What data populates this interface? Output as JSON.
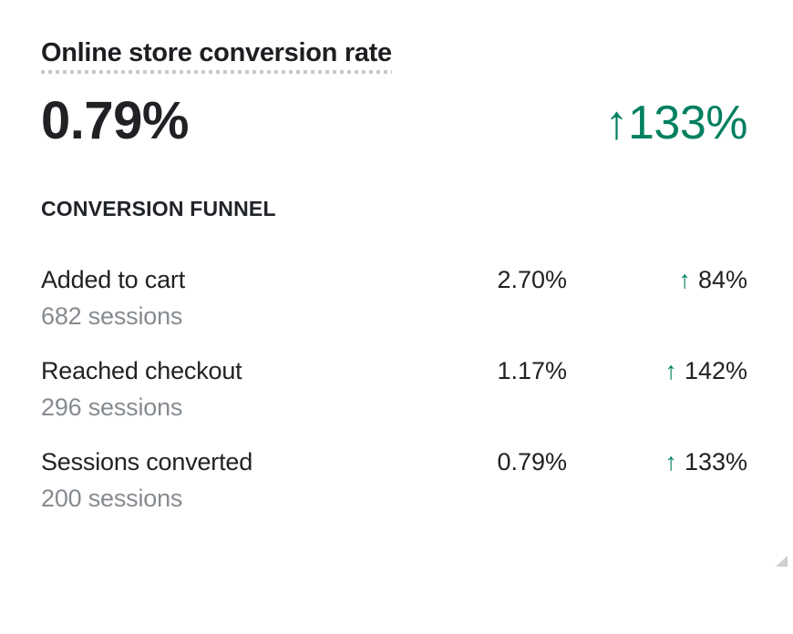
{
  "card": {
    "title": "Online store conversion rate",
    "kpi": {
      "value": "0.79%",
      "change_arrow": "↑",
      "change_value": "133%"
    },
    "section_heading": "CONVERSION FUNNEL",
    "funnel": {
      "rows": [
        {
          "label": "Added to cart",
          "sessions": "682 sessions",
          "rate": "2.70%",
          "arrow": "↑",
          "change": "84%"
        },
        {
          "label": "Reached checkout",
          "sessions": "296 sessions",
          "rate": "1.17%",
          "arrow": "↑",
          "change": "142%"
        },
        {
          "label": "Sessions converted",
          "sessions": "200 sessions",
          "rate": "0.79%",
          "arrow": "↑",
          "change": "133%"
        }
      ]
    },
    "colors": {
      "positive_green": "#008060",
      "text_primary": "#1f2124",
      "text_subdued": "#868b90",
      "underline_dots": "#c7cacd",
      "background": "#ffffff"
    }
  }
}
